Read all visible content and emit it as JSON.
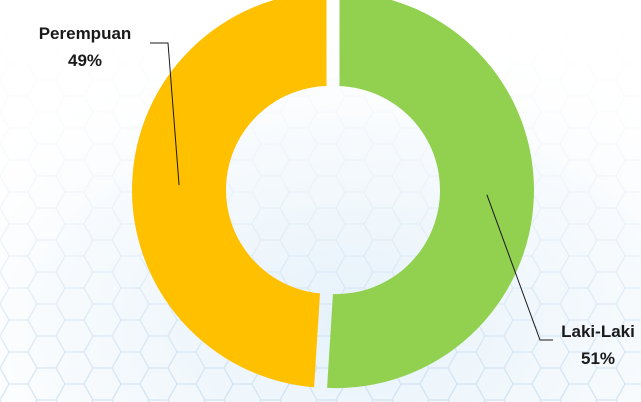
{
  "chart_data": {
    "type": "pie",
    "variant": "donut",
    "slices": [
      {
        "label": "Laki-Laki",
        "value": 51,
        "value_text": "51%",
        "color": "#92D050"
      },
      {
        "label": "Perempuan",
        "value": 49,
        "value_text": "49%",
        "color": "#FFC000"
      }
    ],
    "legend": "none"
  }
}
